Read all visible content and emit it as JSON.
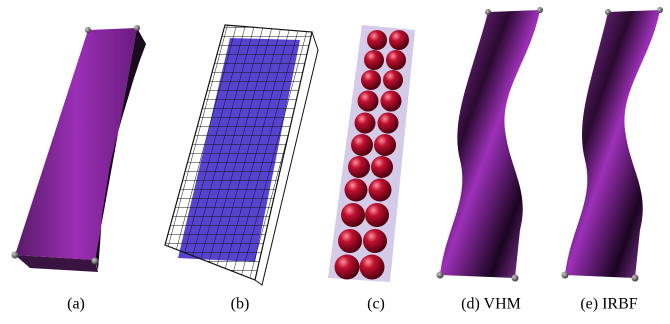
{
  "panels": [
    {
      "caption": "(a)"
    },
    {
      "caption": "(b)"
    },
    {
      "caption": "(c)"
    },
    {
      "caption": "(d) VHM"
    },
    {
      "caption": "(e) IRBF"
    }
  ]
}
